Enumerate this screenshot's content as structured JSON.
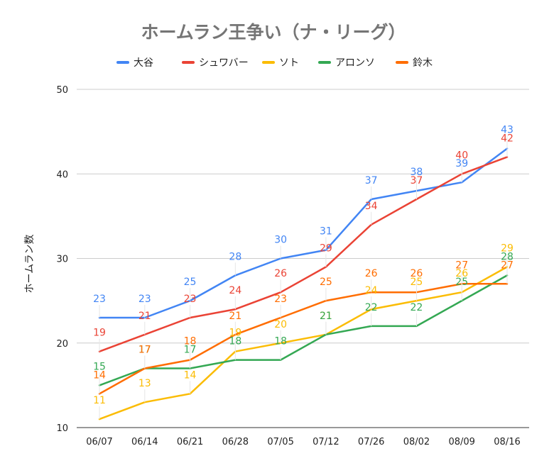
{
  "chart_data": {
    "type": "line",
    "title": "ホームラン王争い（ナ・リーグ）",
    "ylabel": "ホームラン数",
    "xlabel": "",
    "ylim": [
      10,
      50
    ],
    "yticks": [
      "10",
      "20",
      "30",
      "40",
      "50"
    ],
    "grid": true,
    "legend_position": "top",
    "categories": [
      "06/07",
      "06/14",
      "06/21",
      "06/28",
      "07/05",
      "07/12",
      "07/26",
      "08/02",
      "08/09",
      "08/16"
    ],
    "series": [
      {
        "name": "大谷",
        "color": "#4285f4",
        "values": [
          23,
          23,
          25,
          28,
          30,
          31,
          37,
          38,
          39,
          43
        ]
      },
      {
        "name": "シュワバー",
        "color": "#ea4335",
        "values": [
          19,
          21,
          23,
          24,
          26,
          29,
          34,
          37,
          40,
          42
        ]
      },
      {
        "name": "ソト",
        "color": "#fbbc04",
        "values": [
          11,
          13,
          14,
          19,
          20,
          21,
          24,
          25,
          26,
          29
        ]
      },
      {
        "name": "アロンソ",
        "color": "#34a853",
        "values": [
          15,
          17,
          17,
          18,
          18,
          21,
          22,
          22,
          25,
          28
        ]
      },
      {
        "name": "鈴木",
        "color": "#ff6d01",
        "values": [
          14,
          17,
          18,
          21,
          23,
          25,
          26,
          26,
          27,
          27
        ]
      }
    ]
  }
}
